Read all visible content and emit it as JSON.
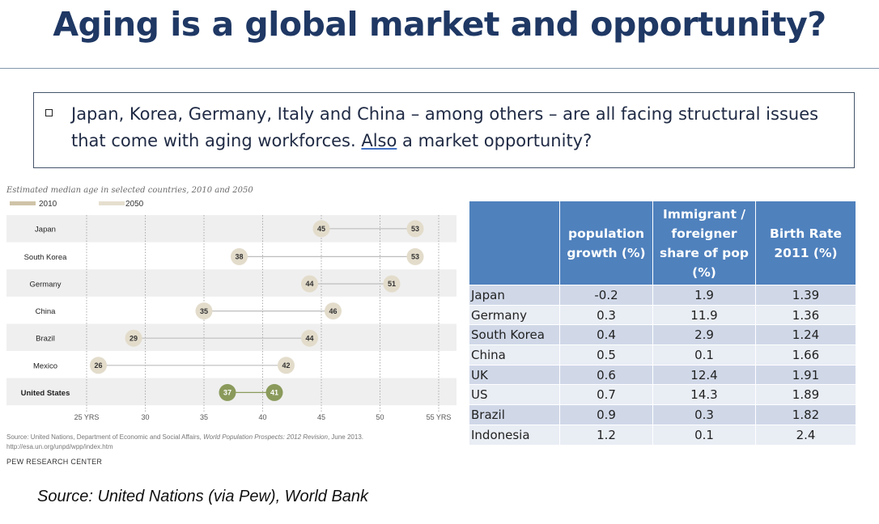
{
  "slide": {
    "title": "Aging is a global market and opportunity?",
    "bullet_before": "Japan, Korea, Germany, Italy and China – among others – are all facing structural issues that come with aging workforces. ",
    "bullet_link": "Also",
    "bullet_after": " a market opportunity?",
    "source": "Source: United Nations (via Pew), World Bank"
  },
  "chart_data": [
    {
      "type": "dot-plot",
      "title": "Estimated median age in selected countries, 2010 and 2050",
      "legend": [
        "2010",
        "2050"
      ],
      "categories": [
        "Japan",
        "South Korea",
        "Germany",
        "China",
        "Brazil",
        "Mexico",
        "United States"
      ],
      "series": [
        {
          "name": "2010",
          "values": [
            45,
            38,
            44,
            35,
            29,
            26,
            37
          ]
        },
        {
          "name": "2050",
          "values": [
            53,
            53,
            51,
            46,
            44,
            42,
            41
          ]
        }
      ],
      "x_ticks": [
        "25 YRS",
        "30",
        "35",
        "40",
        "45",
        "50",
        "55 YRS"
      ],
      "xlim": [
        25,
        55
      ],
      "highlight": "United States",
      "source_note_1": "Source: United Nations, Department of Economic and Social Affairs, ",
      "source_note_italic": "World Population Prospects: 2012 Revision",
      "source_note_2": ", June 2013.",
      "source_url": "http://esa.un.org/unpd/wpp/index.htm",
      "publisher": "PEW RESEARCH CENTER",
      "colors": {
        "dot_2010": "#e3dccb",
        "dot_2050": "#e3dccb",
        "dot_us": "#8a9a5b",
        "stripe": "#efefef",
        "legend": "#cfc4a8"
      }
    },
    {
      "type": "table",
      "headers": [
        "",
        "population growth (%)",
        "Immigrant / foreigner share of pop (%)",
        "Birth Rate 2011 (%)"
      ],
      "rows": [
        [
          "Japan",
          "-0.2",
          "1.9",
          "1.39"
        ],
        [
          "Germany",
          "0.3",
          "11.9",
          "1.36"
        ],
        [
          "South Korea",
          "0.4",
          "2.9",
          "1.24"
        ],
        [
          "China",
          "0.5",
          "0.1",
          "1.66"
        ],
        [
          "UK",
          "0.6",
          "12.4",
          "1.91"
        ],
        [
          "US",
          "0.7",
          "14.3",
          "1.89"
        ],
        [
          "Brazil",
          "0.9",
          "0.3",
          "1.82"
        ],
        [
          "Indonesia",
          "1.2",
          "0.1",
          "2.4"
        ]
      ]
    }
  ]
}
